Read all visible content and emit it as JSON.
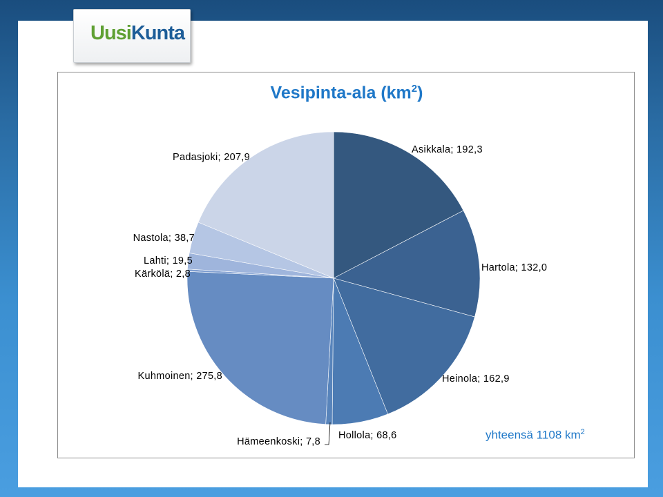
{
  "logo": {
    "part1": "Uusi",
    "part2": "Kunta"
  },
  "chart_data": {
    "type": "pie",
    "title": "Vesipinta-ala (km",
    "title_superscript": "2",
    "title_suffix": ")",
    "slices": [
      {
        "name": "Asikkala",
        "label": "Asikkala; 192,3",
        "value": 192.3,
        "color": "#34587f"
      },
      {
        "name": "Hartola",
        "label": "Hartola; 132,0",
        "value": 132.0,
        "color": "#3b6291"
      },
      {
        "name": "Heinola",
        "label": "Heinola; 162,9",
        "value": 162.9,
        "color": "#416c9f"
      },
      {
        "name": "Hollola",
        "label": "Hollola; 68,6",
        "value": 68.6,
        "color": "#4c7bb3"
      },
      {
        "name": "Hämeenkoski",
        "label": "Hämeenkoski; 7,8",
        "value": 7.8,
        "color": "#5884bb"
      },
      {
        "name": "Kuhmoinen",
        "label": "Kuhmoinen; 275,8",
        "value": 275.8,
        "color": "#668cc2"
      },
      {
        "name": "Kärkölä",
        "label": "Kärkölä; 2,8",
        "value": 2.8,
        "color": "#7f9ed0"
      },
      {
        "name": "Lahti",
        "label": "Lahti; 19,5",
        "value": 19.5,
        "color": "#9fb5dc"
      },
      {
        "name": "Nastola",
        "label": "Nastola; 38,7",
        "value": 38.7,
        "color": "#b5c6e4"
      },
      {
        "name": "Padasjoki",
        "label": "Padasjoki; 207,9",
        "value": 207.9,
        "color": "#cbd5e8"
      }
    ]
  },
  "total": {
    "text": "yhteensä 1108 km",
    "superscript": "2"
  }
}
